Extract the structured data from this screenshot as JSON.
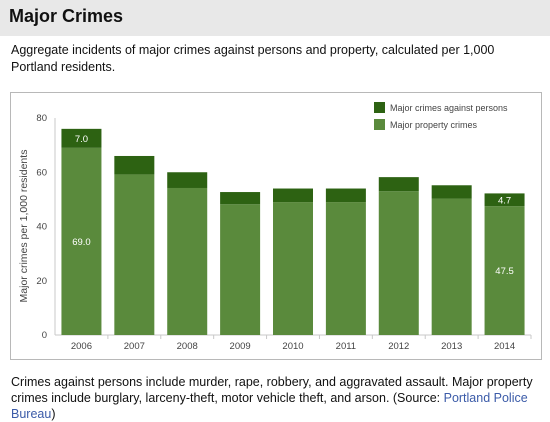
{
  "page": {
    "title": "Major Crimes",
    "intro": "Aggregate incidents of major crimes against persons and property, calculated per 1,000 Portland residents.",
    "footer_text": "Crimes against persons include murder, rape, robbery, and aggravated assault. Major property crimes include burglary, larceny-theft, motor vehicle theft, and arson. (Source: ",
    "source_link": "Portland Police Bureau",
    "footer_end": ")"
  },
  "colors": {
    "persons": "#2d6212",
    "property": "#5a8a3c",
    "axis_text": "#444444",
    "link": "#3b5ba8"
  },
  "chart_data": {
    "type": "bar",
    "stacked": true,
    "categories": [
      "2006",
      "2007",
      "2008",
      "2009",
      "2010",
      "2011",
      "2012",
      "2013",
      "2014"
    ],
    "series": [
      {
        "name": "Major property crimes",
        "values": [
          69.0,
          59.2,
          54.2,
          48.2,
          49.0,
          49.0,
          53.0,
          50.3,
          47.5
        ]
      },
      {
        "name": "Major crimes against persons",
        "values": [
          7.0,
          6.8,
          5.8,
          4.5,
          5.0,
          5.0,
          5.2,
          4.9,
          4.7
        ]
      }
    ],
    "data_labels": [
      {
        "category": "2006",
        "series": "Major crimes against persons",
        "text": "7.0"
      },
      {
        "category": "2006",
        "series": "Major property crimes",
        "text": "69.0"
      },
      {
        "category": "2014",
        "series": "Major crimes against persons",
        "text": "4.7"
      },
      {
        "category": "2014",
        "series": "Major property crimes",
        "text": "47.5"
      }
    ],
    "ylabel": "Major crimes per 1,000 residents",
    "xlabel": "",
    "yticks": [
      0,
      20,
      40,
      60,
      80
    ],
    "ylim": [
      0,
      80
    ],
    "legend_position": "top-right",
    "grid": false
  }
}
